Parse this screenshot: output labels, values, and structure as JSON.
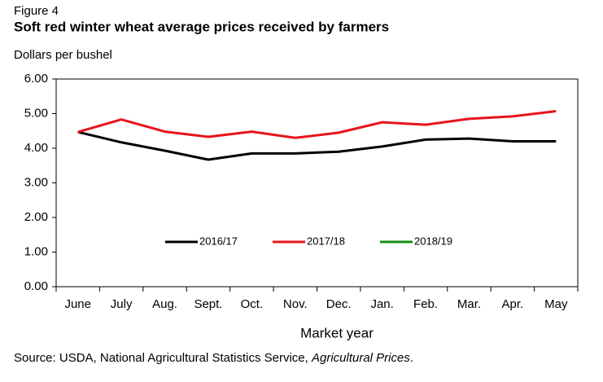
{
  "figure_label": "Figure 4",
  "chart_data": {
    "type": "line",
    "title": "Soft red winter wheat average prices received by farmers",
    "y_axis_label": "Dollars per bushel",
    "x_axis_label": "Market year",
    "categories": [
      "June",
      "July",
      "Aug.",
      "Sept.",
      "Oct.",
      "Nov.",
      "Dec.",
      "Jan.",
      "Feb.",
      "Mar.",
      "Apr.",
      "May"
    ],
    "series": [
      {
        "name": "2016/17",
        "color": "#000000",
        "values": [
          4.47,
          4.17,
          3.93,
          3.67,
          3.85,
          3.85,
          3.9,
          4.05,
          4.25,
          4.28,
          4.2,
          4.2
        ]
      },
      {
        "name": "2017/18",
        "color": "#e8141b",
        "values": [
          4.47,
          4.83,
          4.48,
          4.33,
          4.48,
          4.3,
          4.45,
          4.75,
          4.68,
          4.85,
          4.92,
          5.07
        ]
      },
      {
        "name": "2018/19",
        "color": "#168c16",
        "values": [
          null,
          null,
          null,
          null,
          null,
          null,
          null,
          null,
          null,
          null,
          null,
          null
        ]
      }
    ],
    "ylim": [
      0,
      6
    ],
    "yticks": [
      {
        "value": 0,
        "label": "0.00"
      },
      {
        "value": 1,
        "label": "1.00"
      },
      {
        "value": 2,
        "label": "2.00"
      },
      {
        "value": 3,
        "label": "3.00"
      },
      {
        "value": 4,
        "label": "4.00"
      },
      {
        "value": 5,
        "label": "5.00"
      },
      {
        "value": 6,
        "label": "6.00"
      }
    ],
    "legend": "center"
  },
  "source": {
    "text": "Source: USDA, National Agricultural Statistics Service, ",
    "publication": "Agricultural Prices",
    "end": "."
  }
}
